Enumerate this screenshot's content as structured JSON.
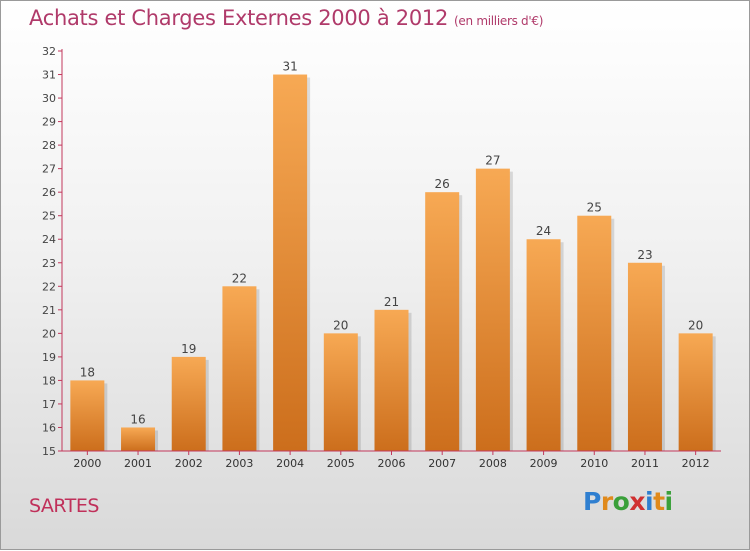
{
  "header": {
    "title": "Achats et Charges Externes 2000 à 2012",
    "unit": "(en milliers d'€)"
  },
  "footer": {
    "place": "SARTES",
    "logo_letters": [
      {
        "ch": "P",
        "color": "#2f7fd0"
      },
      {
        "ch": "r",
        "color": "#e08a1c"
      },
      {
        "ch": "o",
        "color": "#3aa03a"
      },
      {
        "ch": "x",
        "color": "#d03030"
      },
      {
        "ch": "i",
        "color": "#2f7fd0"
      },
      {
        "ch": "t",
        "color": "#e08a1c"
      },
      {
        "ch": "i",
        "color": "#3aa03a"
      }
    ]
  },
  "chart_data": {
    "type": "bar",
    "categories": [
      "2000",
      "2001",
      "2002",
      "2003",
      "2004",
      "2005",
      "2006",
      "2007",
      "2008",
      "2009",
      "2010",
      "2011",
      "2012"
    ],
    "values": [
      18,
      16,
      19,
      22,
      31,
      20,
      21,
      26,
      27,
      24,
      25,
      23,
      20
    ],
    "ylim": [
      15,
      32
    ],
    "yticks": [
      15,
      16,
      17,
      18,
      19,
      20,
      21,
      22,
      23,
      24,
      25,
      26,
      27,
      28,
      29,
      30,
      31,
      32
    ],
    "grid": false,
    "colors": {
      "bar_top": "#f7a954",
      "bar_bottom": "#cc6e1c",
      "axis": "#c2385c"
    }
  }
}
